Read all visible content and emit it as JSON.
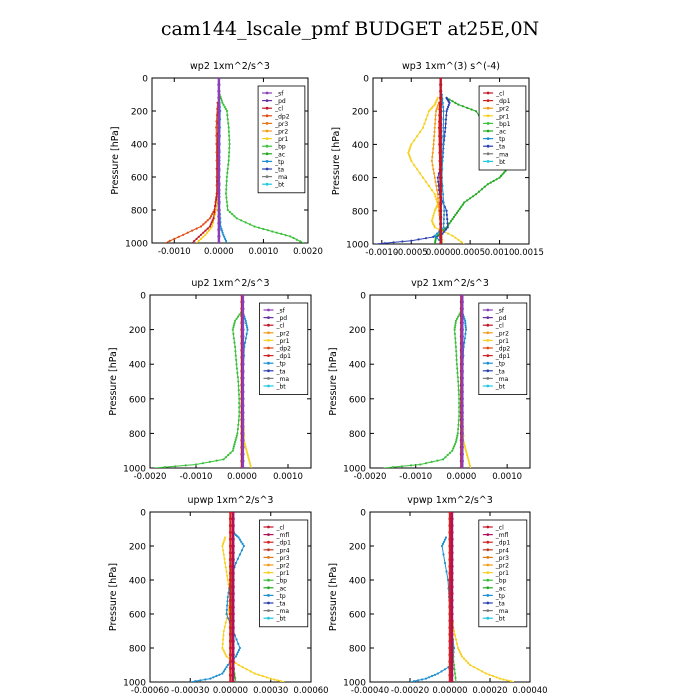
{
  "page": {
    "title": "cam144_lscale_pmf  BUDGET at25E,0N"
  },
  "colors": {
    "_sf": "#8b3fb8",
    "_pd": "#6a2fa0",
    "_cl": "#c0182a",
    "_mfl": "#b0125a",
    "_dp1": "#d62020",
    "_dp2": "#e04a10",
    "_pr4": "#c23a20",
    "_pr3": "#e07818",
    "_pr2": "#f39c1a",
    "_pr1": "#f7d020",
    "_bp": "#3cc03c",
    "_bp1": "#3cc03c",
    "_ac": "#22a822",
    "_tp": "#1e8fd0",
    "_ta": "#2a3fb0",
    "_ma": "#7a7a7a",
    "_bt": "#22c8e0"
  },
  "chart_data": [
    {
      "type": "line",
      "title": "wp2   1xm^2/s^3",
      "ylabel": "Pressure [hPa]",
      "xlim": [
        -0.0015,
        0.002
      ],
      "ylim": [
        1000,
        0
      ],
      "xticks": [
        -0.001,
        0.0,
        0.001,
        0.002
      ],
      "xtick_labels": [
        "-0.0010",
        "0.0000",
        "0.0010",
        "0.0020"
      ],
      "yticks": [
        0,
        200,
        400,
        600,
        800,
        1000
      ],
      "legend": [
        "_sf",
        "_pd",
        "_cl",
        "_dp2",
        "_pr3",
        "_pr2",
        "_pr1",
        "_bp",
        "_ac",
        "_tp",
        "_ta",
        "_ma",
        "_bt"
      ],
      "legend_position": "top-right",
      "series": [
        {
          "name": "_bp",
          "color": "#3cc03c",
          "p": [
            100,
            150,
            200,
            300,
            400,
            500,
            600,
            700,
            800,
            850,
            900,
            930,
            960,
            1000
          ],
          "values": [
            2e-05,
            8e-05,
            0.00018,
            0.00022,
            0.00024,
            0.00022,
            0.00018,
            0.00016,
            0.0002,
            0.0004,
            0.0008,
            0.0012,
            0.0016,
            0.0019
          ]
        },
        {
          "name": "_pr1",
          "color": "#f7d020",
          "p": [
            150,
            300,
            500,
            700,
            800,
            900,
            950,
            1000
          ],
          "values": [
            -2e-05,
            -5e-05,
            -4e-05,
            -3e-05,
            -6e-05,
            -0.00015,
            -0.0003,
            -0.0005
          ]
        },
        {
          "name": "_dp2",
          "color": "#e04a10",
          "p": [
            150,
            300,
            500,
            700,
            800,
            850,
            900,
            950,
            1000
          ],
          "values": [
            -3e-05,
            -6e-05,
            -5e-05,
            -5e-05,
            -0.0001,
            -0.0002,
            -0.0004,
            -0.0008,
            -0.0012
          ]
        },
        {
          "name": "_cl",
          "color": "#c0182a",
          "p": [
            150,
            400,
            700,
            850,
            900,
            950,
            1000
          ],
          "values": [
            -2e-05,
            -3e-05,
            -4e-05,
            -0.00012,
            -0.0002,
            -0.0004,
            -0.0006
          ]
        },
        {
          "name": "_tp",
          "color": "#1e8fd0",
          "p": [
            100,
            200,
            400,
            600,
            800,
            900,
            950,
            1000
          ],
          "values": [
            0.0,
            3e-05,
            2e-05,
            1e-05,
            2e-05,
            4e-05,
            0.0001,
            0.00018
          ]
        },
        {
          "name": "_sf",
          "color": "#8b3fb8",
          "p": [
            0,
            1000
          ],
          "values": [
            0.0,
            0.0
          ]
        }
      ]
    },
    {
      "type": "line",
      "title": "wp3   1xm^(3) s^(-4)",
      "ylabel": "Pressure [hPa]",
      "xlim": [
        -0.00115,
        0.0015
      ],
      "ylim": [
        1000,
        0
      ],
      "xticks": [
        -0.001,
        -0.0005,
        0.0,
        0.0005,
        0.001,
        0.0015
      ],
      "xtick_labels": [
        "-0.0010",
        "-0.0005",
        "0.0000",
        "0.0005",
        "0.0010",
        "0.0015"
      ],
      "yticks": [
        0,
        200,
        400,
        600,
        800,
        1000
      ],
      "legend": [
        "_cl",
        "_dp1",
        "_pr2",
        "_pr1",
        "_bp1",
        "_ac",
        "_tp",
        "_ta",
        "_ma",
        "_bt"
      ],
      "legend_position": "top-right",
      "series": [
        {
          "name": "_ac",
          "color": "#22a822",
          "p": [
            120,
            160,
            200,
            300,
            400,
            500,
            560,
            600,
            640,
            700,
            750,
            800,
            850,
            900,
            930,
            960,
            1000
          ],
          "values": [
            0.0001,
            0.0003,
            0.0006,
            0.0008,
            0.0009,
            0.0011,
            0.0011,
            0.001,
            0.0008,
            0.0006,
            0.0004,
            0.0003,
            0.0002,
            0.0001,
            0.0,
            -8e-05,
            -0.0001
          ]
        },
        {
          "name": "_pr1",
          "color": "#f7d020",
          "p": [
            120,
            160,
            200,
            300,
            400,
            450,
            500,
            600,
            700,
            760,
            800,
            860,
            900,
            950,
            1000
          ],
          "values": [
            -5e-05,
            -0.0001,
            -0.0002,
            -0.0003,
            -0.0005,
            -0.00055,
            -0.0005,
            -0.0003,
            -0.0001,
            -5e-05,
            -0.0001,
            -0.00015,
            -0.0001,
            0.0002,
            0.0004
          ]
        },
        {
          "name": "_pr2",
          "color": "#f39c1a",
          "p": [
            150,
            200,
            300,
            400,
            500,
            600,
            700,
            800,
            900,
            1000
          ],
          "values": [
            -3e-05,
            -8e-05,
            -0.0001,
            -0.00012,
            -0.00015,
            -0.0001,
            -5e-05,
            -3e-05,
            0.0,
            3e-05
          ]
        },
        {
          "name": "_ta",
          "color": "#2a3fb0",
          "p": [
            120,
            150,
            200,
            300,
            400,
            500,
            600,
            700,
            800,
            900,
            950,
            980,
            1000
          ],
          "values": [
            0.0001,
            0.00015,
            0.0001,
            8e-05,
            5e-05,
            3e-05,
            -5e-05,
            -2e-05,
            0.0001,
            0.00012,
            0.0,
            -0.0005,
            -0.0011
          ]
        },
        {
          "name": "_tp",
          "color": "#1e8fd0",
          "p": [
            100,
            200,
            400,
            600,
            800,
            900,
            950,
            1000
          ],
          "values": [
            2e-05,
            5e-05,
            4e-05,
            2e-05,
            6e-05,
            5e-05,
            -0.0001,
            4e-05
          ]
        },
        {
          "name": "_dp1",
          "color": "#d62020",
          "p": [
            150,
            300,
            500,
            700,
            900,
            1000
          ],
          "values": [
            -2e-05,
            -3e-05,
            -2e-05,
            -1e-05,
            0.0,
            1e-05
          ]
        },
        {
          "name": "_cl",
          "color": "#c0182a",
          "p": [
            0,
            1000
          ],
          "values": [
            0.0,
            0.0
          ]
        }
      ]
    },
    {
      "type": "line",
      "title": "up2   1xm^2/s^3",
      "ylabel": "Pressure [hPa]",
      "xlim": [
        -0.002,
        0.0015
      ],
      "ylim": [
        1000,
        0
      ],
      "xticks": [
        -0.002,
        -0.001,
        0.0,
        0.001
      ],
      "xtick_labels": [
        "-0.0020",
        "-0.0010",
        "0.0000",
        "0.0010"
      ],
      "yticks": [
        0,
        200,
        400,
        600,
        800,
        1000
      ],
      "legend": [
        "_sf",
        "_pd",
        "_cl",
        "_pr2",
        "_pr1",
        "_dp2",
        "_dp1",
        "_tp",
        "_ta",
        "_ma",
        "_bt"
      ],
      "legend_position": "top-right",
      "series": [
        {
          "name": "_dp1",
          "color": "#3cc03c",
          "p": [
            100,
            150,
            200,
            300,
            400,
            500,
            600,
            700,
            800,
            850,
            900,
            950,
            980,
            1000
          ],
          "values": [
            -2e-05,
            -0.00015,
            -0.0002,
            -0.00015,
            -0.00012,
            -8e-05,
            -6e-05,
            -6e-05,
            -0.0001,
            -0.00015,
            -0.0002,
            -0.0004,
            -0.001,
            -0.0019
          ]
        },
        {
          "name": "_pr1",
          "color": "#f7d020",
          "p": [
            150,
            400,
            700,
            850,
            900,
            950,
            1000
          ],
          "values": [
            0.0,
            2e-05,
            3e-05,
            5e-05,
            0.0001,
            0.00015,
            0.0002
          ]
        },
        {
          "name": "_tp",
          "color": "#1e8fd0",
          "p": [
            100,
            150,
            200,
            300,
            500,
            800,
            1000
          ],
          "values": [
            2e-05,
            8e-05,
            0.00012,
            5e-05,
            2e-05,
            1e-05,
            0.0
          ]
        },
        {
          "name": "_cl",
          "color": "#c0182a",
          "p": [
            0,
            1000
          ],
          "values": [
            0.0,
            0.0
          ]
        },
        {
          "name": "_sf",
          "color": "#8b3fb8",
          "p": [
            0,
            1000
          ],
          "values": [
            2e-05,
            2e-05
          ]
        }
      ]
    },
    {
      "type": "line",
      "title": "vp2   1xm^2/s^3",
      "ylabel": "Pressure [hPa]",
      "xlim": [
        -0.002,
        0.0015
      ],
      "ylim": [
        1000,
        0
      ],
      "xticks": [
        -0.002,
        -0.001,
        0.0,
        0.001
      ],
      "xtick_labels": [
        "-0.0020",
        "-0.0010",
        "0.0000",
        "0.0010"
      ],
      "yticks": [
        0,
        200,
        400,
        600,
        800,
        1000
      ],
      "legend": [
        "_sf",
        "_pd",
        "_cl",
        "_pr2",
        "_pr1",
        "_dp2",
        "_dp1",
        "_tp",
        "_ta",
        "_ma",
        "_bt"
      ],
      "legend_position": "top-right",
      "series": [
        {
          "name": "_dp1",
          "color": "#3cc03c",
          "p": [
            100,
            150,
            200,
            300,
            400,
            500,
            600,
            700,
            800,
            850,
            900,
            950,
            980,
            1000
          ],
          "values": [
            -2e-05,
            -0.00012,
            -0.00015,
            -0.00012,
            -0.0001,
            -7e-05,
            -5e-05,
            -5e-05,
            -8e-05,
            -0.00012,
            -0.0002,
            -0.0004,
            -0.0009,
            -0.0017
          ]
        },
        {
          "name": "_pr1",
          "color": "#f7d020",
          "p": [
            150,
            400,
            700,
            850,
            900,
            950,
            1000
          ],
          "values": [
            0.0,
            2e-05,
            3e-05,
            5e-05,
            0.0001,
            0.00015,
            0.0002
          ]
        },
        {
          "name": "_tp",
          "color": "#1e8fd0",
          "p": [
            100,
            150,
            200,
            300,
            500,
            800,
            1000
          ],
          "values": [
            2e-05,
            8e-05,
            0.0001,
            5e-05,
            2e-05,
            1e-05,
            0.0
          ]
        },
        {
          "name": "_cl",
          "color": "#c0182a",
          "p": [
            0,
            1000
          ],
          "values": [
            0.0,
            0.0
          ]
        },
        {
          "name": "_sf",
          "color": "#8b3fb8",
          "p": [
            0,
            1000
          ],
          "values": [
            2e-05,
            2e-05
          ]
        }
      ]
    },
    {
      "type": "line",
      "title": "upwp   1xm^2/s^3",
      "ylabel": "Pressure [hPa]",
      "xlim": [
        -0.0006,
        0.0006
      ],
      "ylim": [
        1000,
        0
      ],
      "xticks": [
        -0.0006,
        -0.0003,
        0.0,
        0.0003,
        0.0006
      ],
      "xtick_labels": [
        "-0.00060",
        "-0.00030",
        "0.00000",
        "0.00030",
        "0.00060"
      ],
      "yticks": [
        0,
        200,
        400,
        600,
        800,
        1000
      ],
      "legend": [
        "_cl",
        "_mfl",
        "_dp1",
        "_pr4",
        "_pr3",
        "_pr2",
        "_pr1",
        "_bp",
        "_ac",
        "_tp",
        "_ta",
        "_ma",
        "_bt"
      ],
      "legend_position": "top-right",
      "series": [
        {
          "name": "_pr1",
          "color": "#f7d020",
          "p": [
            150,
            200,
            300,
            400,
            500,
            600,
            700,
            800,
            850,
            900,
            950,
            980,
            1000
          ],
          "values": [
            -4e-05,
            -6e-05,
            -4e-05,
            -2e-05,
            0.0,
            -2e-05,
            -5e-05,
            -6e-05,
            -3e-05,
            6e-05,
            0.00018,
            0.0003,
            0.0004
          ]
        },
        {
          "name": "_tp",
          "color": "#1e8fd0",
          "p": [
            120,
            150,
            200,
            300,
            400,
            500,
            600,
            700,
            800,
            850,
            900,
            950,
            980,
            1000
          ],
          "values": [
            2e-05,
            6e-05,
            0.0001,
            4e-05,
            0.0,
            -2e-05,
            -3e-05,
            2e-05,
            7e-05,
            4e-05,
            -2e-05,
            -6e-05,
            -0.00015,
            -0.0003
          ]
        },
        {
          "name": "_bp",
          "color": "#3cc03c",
          "p": [
            150,
            400,
            700,
            900,
            1000
          ],
          "values": [
            0.0,
            1e-05,
            1e-05,
            2e-05,
            4e-05
          ]
        },
        {
          "name": "_dp1",
          "color": "#d62020",
          "p": [
            0,
            1000
          ],
          "values": [
            0.0,
            0.0
          ]
        },
        {
          "name": "_mfl",
          "color": "#b0125a",
          "p": [
            0,
            1000
          ],
          "values": [
            2e-05,
            2e-05
          ]
        }
      ]
    },
    {
      "type": "line",
      "title": "vpwp   1xm^2/s^3",
      "ylabel": "Pressure [hPa]",
      "xlim": [
        -0.0004,
        0.0004
      ],
      "ylim": [
        1000,
        0
      ],
      "xticks": [
        -0.0004,
        -0.0002,
        0.0,
        0.0002,
        0.0004
      ],
      "xtick_labels": [
        "-0.00040",
        "-0.00020",
        "0.00000",
        "0.00020",
        "0.00040"
      ],
      "yticks": [
        0,
        200,
        400,
        600,
        800,
        1000
      ],
      "legend": [
        "_cl",
        "_mfl",
        "_dp1",
        "_pr4",
        "_pr3",
        "_pr2",
        "_pr1",
        "_bp",
        "_ac",
        "_tp",
        "_ta",
        "_ma",
        "_bt"
      ],
      "legend_position": "top-right",
      "series": [
        {
          "name": "_pr1",
          "color": "#f7d020",
          "p": [
            150,
            300,
            500,
            700,
            800,
            850,
            900,
            950,
            980,
            1000
          ],
          "values": [
            0.0,
            1e-05,
            0.0,
            2e-05,
            4e-05,
            6e-05,
            0.0001,
            0.00018,
            0.00025,
            0.00032
          ]
        },
        {
          "name": "_tp",
          "color": "#1e8fd0",
          "p": [
            150,
            200,
            400,
            600,
            800,
            900,
            950,
            980,
            1000
          ],
          "values": [
            -2e-05,
            -4e-05,
            -1e-05,
            0.0,
            2e-05,
            1e-05,
            -6e-05,
            -0.00012,
            -0.0002
          ]
        },
        {
          "name": "_bp",
          "color": "#3cc03c",
          "p": [
            150,
            400,
            700,
            900,
            1000
          ],
          "values": [
            0.0,
            1e-05,
            1e-05,
            2e-05,
            3e-05
          ]
        },
        {
          "name": "_dp1",
          "color": "#d62020",
          "p": [
            0,
            1000
          ],
          "values": [
            0.0,
            0.0
          ]
        },
        {
          "name": "_mfl",
          "color": "#b0125a",
          "p": [
            0,
            1000
          ],
          "values": [
            1e-05,
            1e-05
          ]
        }
      ]
    }
  ]
}
